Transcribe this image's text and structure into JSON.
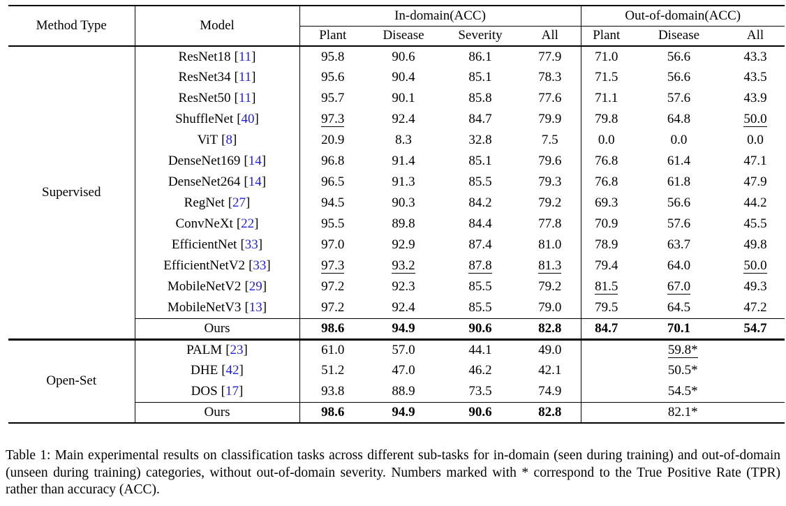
{
  "citation_color": "#1f1fdd",
  "punct": {
    "open_bracket": "[",
    "close_bracket": "]"
  },
  "table": {
    "headers": {
      "method_type": "Method Type",
      "model": "Model",
      "group_in": "In-domain(ACC)",
      "group_out": "Out-of-domain(ACC)",
      "in_cols": [
        "Plant",
        "Disease",
        "Severity",
        "All"
      ],
      "out_cols": [
        "Plant",
        "Disease",
        "All"
      ]
    },
    "sections": [
      {
        "method_type": "Supervised",
        "rows": [
          {
            "model": "ResNet18",
            "cite": "11",
            "in": [
              "95.8",
              "90.6",
              "86.1",
              "77.9"
            ],
            "out": [
              "71.0",
              "56.6",
              "43.3"
            ],
            "u_in": [],
            "u_out": [],
            "bold": false
          },
          {
            "model": "ResNet34",
            "cite": "11",
            "in": [
              "95.6",
              "90.4",
              "85.1",
              "78.3"
            ],
            "out": [
              "71.5",
              "56.6",
              "43.5"
            ],
            "u_in": [],
            "u_out": [],
            "bold": false
          },
          {
            "model": "ResNet50",
            "cite": "11",
            "in": [
              "95.7",
              "90.1",
              "85.8",
              "77.6"
            ],
            "out": [
              "71.1",
              "57.6",
              "43.9"
            ],
            "u_in": [],
            "u_out": [],
            "bold": false
          },
          {
            "model": "ShuffleNet",
            "cite": "40",
            "in": [
              "97.3",
              "92.4",
              "84.7",
              "79.9"
            ],
            "out": [
              "79.8",
              "64.8",
              "50.0"
            ],
            "u_in": [
              0
            ],
            "u_out": [
              2
            ],
            "bold": false
          },
          {
            "model": "ViT",
            "cite": "8",
            "in": [
              "20.9",
              "8.3",
              "32.8",
              "7.5"
            ],
            "out": [
              "0.0",
              "0.0",
              "0.0"
            ],
            "u_in": [],
            "u_out": [],
            "bold": false
          },
          {
            "model": "DenseNet169",
            "cite": "14",
            "in": [
              "96.8",
              "91.4",
              "85.1",
              "79.6"
            ],
            "out": [
              "76.8",
              "61.4",
              "47.1"
            ],
            "u_in": [],
            "u_out": [],
            "bold": false
          },
          {
            "model": "DenseNet264",
            "cite": "14",
            "in": [
              "96.5",
              "91.3",
              "85.5",
              "79.3"
            ],
            "out": [
              "76.8",
              "61.8",
              "47.9"
            ],
            "u_in": [],
            "u_out": [],
            "bold": false
          },
          {
            "model": "RegNet",
            "cite": "27",
            "in": [
              "94.5",
              "90.3",
              "84.2",
              "79.2"
            ],
            "out": [
              "69.3",
              "56.6",
              "44.2"
            ],
            "u_in": [],
            "u_out": [],
            "bold": false
          },
          {
            "model": "ConvNeXt",
            "cite": "22",
            "in": [
              "95.5",
              "89.8",
              "84.4",
              "77.8"
            ],
            "out": [
              "70.9",
              "57.6",
              "45.5"
            ],
            "u_in": [],
            "u_out": [],
            "bold": false
          },
          {
            "model": "EfficientNet",
            "cite": "33",
            "in": [
              "97.0",
              "92.9",
              "87.4",
              "81.0"
            ],
            "out": [
              "78.9",
              "63.7",
              "49.8"
            ],
            "u_in": [],
            "u_out": [],
            "bold": false
          },
          {
            "model": "EfficientNetV2",
            "cite": "33",
            "in": [
              "97.3",
              "93.2",
              "87.8",
              "81.3"
            ],
            "out": [
              "79.4",
              "64.0",
              "50.0"
            ],
            "u_in": [
              0,
              1,
              2,
              3
            ],
            "u_out": [
              2
            ],
            "bold": false
          },
          {
            "model": "MobileNetV2",
            "cite": "29",
            "in": [
              "97.2",
              "92.3",
              "85.5",
              "79.2"
            ],
            "out": [
              "81.5",
              "67.0",
              "49.3"
            ],
            "u_in": [],
            "u_out": [
              0,
              1
            ],
            "bold": false
          },
          {
            "model": "MobileNetV3",
            "cite": "13",
            "in": [
              "97.2",
              "92.4",
              "85.5",
              "79.0"
            ],
            "out": [
              "79.5",
              "64.5",
              "47.2"
            ],
            "u_in": [],
            "u_out": [],
            "bold": false
          },
          {
            "model": "Ours",
            "cite": null,
            "in": [
              "98.6",
              "94.9",
              "90.6",
              "82.8"
            ],
            "out": [
              "84.7",
              "70.1",
              "54.7"
            ],
            "u_in": [],
            "u_out": [],
            "bold": true,
            "cline": true
          }
        ]
      },
      {
        "method_type": "Open-Set",
        "rows": [
          {
            "model": "PALM",
            "cite": "23",
            "in": [
              "61.0",
              "57.0",
              "44.1",
              "49.0"
            ],
            "out_merged": "59.8*",
            "merged_underline": true,
            "u_in": [],
            "bold": false
          },
          {
            "model": "DHE",
            "cite": "42",
            "in": [
              "51.2",
              "47.0",
              "46.2",
              "42.1"
            ],
            "out_merged": "50.5*",
            "merged_underline": false,
            "u_in": [],
            "bold": false
          },
          {
            "model": "DOS",
            "cite": "17",
            "in": [
              "93.8",
              "88.9",
              "73.5",
              "74.9"
            ],
            "out_merged": "54.5*",
            "merged_underline": false,
            "u_in": [],
            "bold": false
          },
          {
            "model": "Ours",
            "cite": null,
            "in": [
              "98.6",
              "94.9",
              "90.6",
              "82.8"
            ],
            "out_merged": "82.1*",
            "merged_underline": false,
            "u_in": [],
            "bold": true,
            "cline": true
          }
        ]
      }
    ]
  },
  "caption": "Table 1: Main experimental results on classification tasks across different sub-tasks for in-domain (seen during training) and out-of-domain (unseen during training) categories, without out-of-domain severity. Numbers marked with * correspond to the True Positive Rate (TPR) rather than accuracy (ACC)."
}
